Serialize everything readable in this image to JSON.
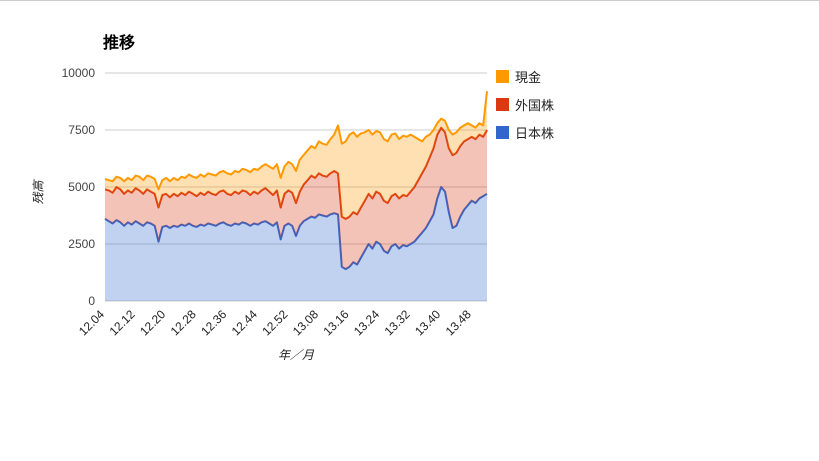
{
  "page": {
    "background": "#FFFFFF",
    "top_border_color": "#CCCCCC"
  },
  "chart": {
    "title": "推移"
  },
  "axes": {
    "y": {
      "title": "残高",
      "ticks": [
        "0",
        "2500",
        "5000",
        "7500",
        "10000"
      ],
      "max": 10000
    },
    "x": {
      "title": "年／月",
      "tick_labels": [
        "12.04",
        "12.12",
        "12.20",
        "12.28",
        "12.36",
        "12.44",
        "12.52",
        "13.08",
        "13.16",
        "13.24",
        "13.32",
        "13.40",
        "13.48"
      ],
      "tick_every": 8
    }
  },
  "legend": {
    "items": [
      {
        "id": "cash",
        "label": "現金",
        "color": "#FF9900"
      },
      {
        "id": "foreign-stocks",
        "label": "外国株",
        "color": "#DC3912"
      },
      {
        "id": "japan-stocks",
        "label": "日本株",
        "color": "#3366CC"
      }
    ]
  },
  "chart_data": {
    "type": "area",
    "stacked": true,
    "title": "推移",
    "xlabel": "年／月",
    "ylabel": "残高",
    "ylim": [
      0,
      10000
    ],
    "grid": true,
    "legend_position": "right",
    "n_points": 101,
    "x_tick_labels": [
      "12.04",
      "12.12",
      "12.20",
      "12.28",
      "12.36",
      "12.44",
      "12.52",
      "13.08",
      "13.16",
      "13.24",
      "13.32",
      "13.40",
      "13.48"
    ],
    "note": "weekly points; top_values are the plotted top edge (stacked cumulative height) of each band, bottom band first",
    "series": [
      {
        "name": "日本株",
        "id": "japan-stocks",
        "color": "#3366CC",
        "top_values": [
          3600,
          3500,
          3400,
          3550,
          3450,
          3300,
          3450,
          3350,
          3500,
          3400,
          3300,
          3450,
          3400,
          3300,
          2600,
          3250,
          3300,
          3200,
          3300,
          3250,
          3350,
          3300,
          3400,
          3300,
          3250,
          3350,
          3300,
          3400,
          3350,
          3300,
          3400,
          3450,
          3350,
          3300,
          3400,
          3350,
          3450,
          3400,
          3300,
          3400,
          3350,
          3450,
          3500,
          3400,
          3300,
          3450,
          2700,
          3300,
          3400,
          3300,
          2850,
          3300,
          3500,
          3600,
          3700,
          3650,
          3800,
          3750,
          3700,
          3800,
          3850,
          3800,
          1500,
          1400,
          1500,
          1700,
          1600,
          1900,
          2200,
          2500,
          2300,
          2600,
          2500,
          2200,
          2100,
          2400,
          2500,
          2300,
          2450,
          2400,
          2500,
          2600,
          2800,
          3000,
          3200,
          3500,
          3800,
          4500,
          5000,
          4800,
          3900,
          3200,
          3300,
          3700,
          4000,
          4200,
          4400,
          4300,
          4500,
          4600,
          4700
        ]
      },
      {
        "name": "外国株",
        "id": "foreign-stocks",
        "color": "#DC3912",
        "top_values": [
          4900,
          4850,
          4750,
          5000,
          4900,
          4700,
          4850,
          4750,
          4950,
          4850,
          4700,
          4900,
          4800,
          4700,
          4100,
          4650,
          4700,
          4550,
          4700,
          4600,
          4750,
          4650,
          4800,
          4700,
          4600,
          4750,
          4650,
          4800,
          4700,
          4650,
          4800,
          4850,
          4700,
          4650,
          4800,
          4700,
          4850,
          4800,
          4650,
          4800,
          4700,
          4850,
          4950,
          4800,
          4650,
          4850,
          4100,
          4700,
          4850,
          4750,
          4300,
          4800,
          5100,
          5300,
          5500,
          5400,
          5600,
          5500,
          5450,
          5600,
          5700,
          5600,
          3700,
          3600,
          3700,
          3900,
          3800,
          4100,
          4400,
          4700,
          4500,
          4800,
          4700,
          4400,
          4300,
          4600,
          4700,
          4500,
          4650,
          4600,
          4800,
          5000,
          5300,
          5600,
          5900,
          6300,
          6700,
          7300,
          7600,
          7400,
          6700,
          6400,
          6500,
          6800,
          7000,
          7100,
          7200,
          7100,
          7300,
          7200,
          7500
        ]
      },
      {
        "name": "現金",
        "id": "cash",
        "color": "#FF9900",
        "top_values": [
          5350,
          5300,
          5250,
          5450,
          5400,
          5250,
          5400,
          5300,
          5500,
          5450,
          5300,
          5500,
          5450,
          5350,
          4900,
          5300,
          5400,
          5250,
          5400,
          5300,
          5450,
          5400,
          5550,
          5450,
          5400,
          5550,
          5450,
          5600,
          5550,
          5500,
          5650,
          5700,
          5600,
          5550,
          5700,
          5650,
          5800,
          5750,
          5650,
          5800,
          5750,
          5900,
          6000,
          5900,
          5800,
          6000,
          5400,
          5900,
          6100,
          6000,
          5700,
          6200,
          6400,
          6600,
          6800,
          6700,
          7000,
          6900,
          6850,
          7100,
          7300,
          7700,
          6900,
          7000,
          7300,
          7400,
          7200,
          7350,
          7400,
          7500,
          7300,
          7450,
          7400,
          7100,
          7000,
          7300,
          7350,
          7100,
          7250,
          7200,
          7300,
          7200,
          7100,
          7000,
          7200,
          7300,
          7500,
          7800,
          8000,
          7900,
          7500,
          7300,
          7400,
          7600,
          7700,
          7800,
          7700,
          7600,
          7800,
          7700,
          9200
        ]
      }
    ]
  }
}
